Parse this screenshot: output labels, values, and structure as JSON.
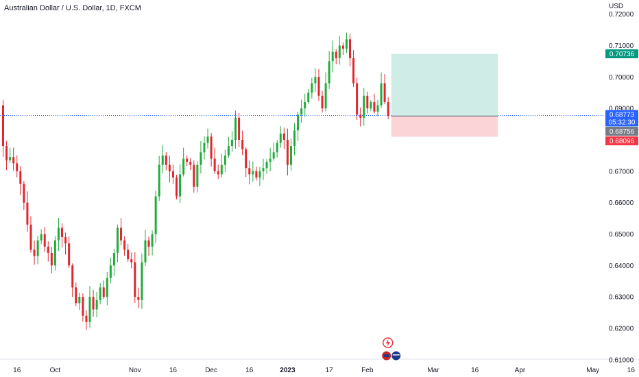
{
  "title": "Australian Dollar / U.S. Dollar, 1D, FXCM",
  "currency": "USD",
  "colors": {
    "up": "#22ab3c",
    "down": "#e0262e",
    "price_line": "#2962ff",
    "profit_zone": "#cfece7",
    "loss_zone": "#fbd4d8",
    "target_tag": "#089981",
    "current_tag": "#2962ff",
    "entry_tag": "#787b86",
    "stop_tag": "#f23645"
  },
  "icons": [
    "lightning-event-icon",
    "flag-event-icon"
  ],
  "chart_data": {
    "type": "candlestick",
    "title": "Australian Dollar / U.S. Dollar, 1D, FXCM",
    "ylabel": "USD",
    "ylim": [
      0.6045,
      0.7245
    ],
    "y_ticks": [
      "0.72000",
      "0.71000",
      "0.70000",
      "0.69000",
      "0.67000",
      "0.66000",
      "0.65000",
      "0.64000",
      "0.63000",
      "0.62000",
      "0.61000"
    ],
    "x_ticks": [
      {
        "label": "16",
        "bar": 4
      },
      {
        "label": "Oct",
        "bar": 15
      },
      {
        "label": "Nov",
        "bar": 38
      },
      {
        "label": "16",
        "bar": 49
      },
      {
        "label": "Dec",
        "bar": 60
      },
      {
        "label": "16",
        "bar": 71
      },
      {
        "label": "2023",
        "bar": 82,
        "bold": true
      },
      {
        "label": "17",
        "bar": 94
      },
      {
        "label": "Feb",
        "bar": 105
      },
      {
        "label": "Mar",
        "bar": 124
      },
      {
        "label": "16",
        "bar": 136
      },
      {
        "label": "Apr",
        "bar": 149
      },
      {
        "label": "May",
        "bar": 170
      },
      {
        "label": "16",
        "bar": 181
      }
    ],
    "closes": [
      0.678,
      0.6735,
      0.6745,
      0.6725,
      0.67,
      0.666,
      0.66,
      0.653,
      0.645,
      0.643,
      0.648,
      0.65,
      0.646,
      0.644,
      0.64,
      0.648,
      0.652,
      0.649,
      0.647,
      0.64,
      0.633,
      0.628,
      0.63,
      0.624,
      0.622,
      0.63,
      0.626,
      0.629,
      0.633,
      0.63,
      0.636,
      0.64,
      0.644,
      0.652,
      0.648,
      0.645,
      0.642,
      0.641,
      0.63,
      0.629,
      0.641,
      0.648,
      0.646,
      0.65,
      0.662,
      0.672,
      0.675,
      0.672,
      0.67,
      0.668,
      0.662,
      0.669,
      0.674,
      0.673,
      0.672,
      0.665,
      0.672,
      0.676,
      0.679,
      0.681,
      0.674,
      0.67,
      0.669,
      0.672,
      0.675,
      0.678,
      0.68,
      0.687,
      0.68,
      0.677,
      0.671,
      0.669,
      0.67,
      0.668,
      0.67,
      0.671,
      0.673,
      0.674,
      0.676,
      0.679,
      0.682,
      0.68,
      0.672,
      0.678,
      0.683,
      0.688,
      0.69,
      0.692,
      0.695,
      0.698,
      0.7,
      0.694,
      0.69,
      0.698,
      0.705,
      0.708,
      0.706,
      0.71,
      0.709,
      0.712,
      0.706,
      0.698,
      0.688,
      0.687,
      0.694,
      0.69,
      0.692,
      0.689,
      0.691,
      0.698,
      0.692,
      0.6877
    ],
    "current_price": "0.68773",
    "countdown": "05:32:30",
    "position": {
      "type": "long",
      "entry": "0.68756",
      "target": "0.70736",
      "stop": "0.68096"
    }
  }
}
